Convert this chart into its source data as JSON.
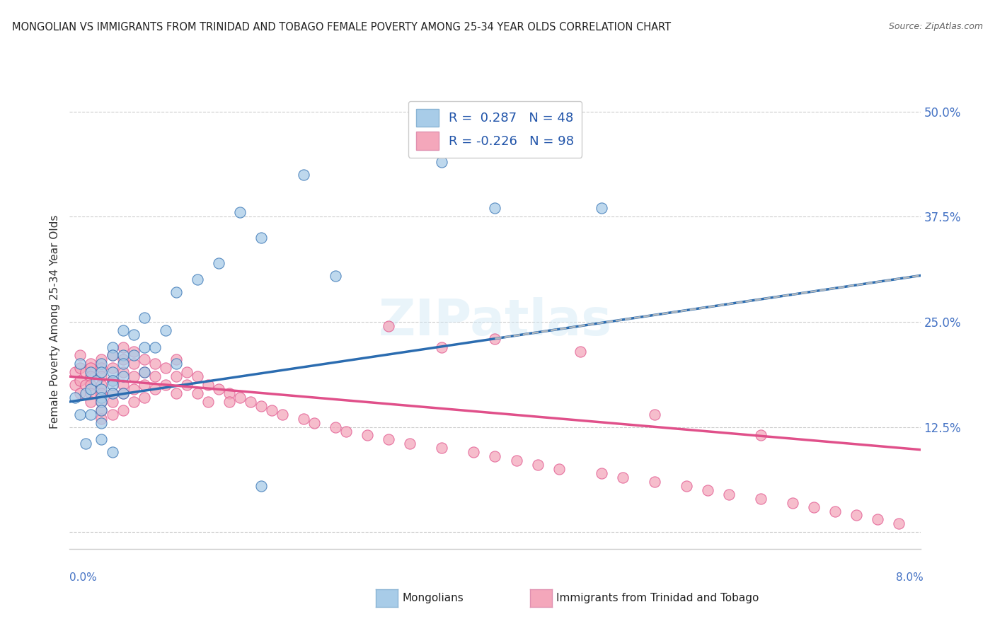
{
  "title": "MONGOLIAN VS IMMIGRANTS FROM TRINIDAD AND TOBAGO FEMALE POVERTY AMONG 25-34 YEAR OLDS CORRELATION CHART",
  "source": "Source: ZipAtlas.com",
  "ylabel": "Female Poverty Among 25-34 Year Olds",
  "yticks": [
    0.0,
    0.125,
    0.25,
    0.375,
    0.5
  ],
  "ytick_labels": [
    "",
    "12.5%",
    "25.0%",
    "37.5%",
    "50.0%"
  ],
  "xlim": [
    0.0,
    0.08
  ],
  "ylim": [
    -0.02,
    0.52
  ],
  "blue_color": "#a8cce8",
  "pink_color": "#f4a7bb",
  "blue_line_color": "#2b6cb0",
  "pink_line_color": "#e0508a",
  "blue_trend_x0": 0.0,
  "blue_trend_y0": 0.155,
  "blue_trend_x1": 0.08,
  "blue_trend_y1": 0.305,
  "pink_trend_x0": 0.0,
  "pink_trend_y0": 0.185,
  "pink_trend_x1": 0.08,
  "pink_trend_y1": 0.098,
  "mongolian_x": [
    0.0005,
    0.001,
    0.001,
    0.0015,
    0.0015,
    0.002,
    0.002,
    0.002,
    0.0025,
    0.003,
    0.003,
    0.003,
    0.003,
    0.003,
    0.003,
    0.003,
    0.003,
    0.004,
    0.004,
    0.004,
    0.004,
    0.004,
    0.004,
    0.004,
    0.005,
    0.005,
    0.005,
    0.005,
    0.005,
    0.006,
    0.006,
    0.007,
    0.007,
    0.007,
    0.008,
    0.009,
    0.01,
    0.01,
    0.012,
    0.014,
    0.016,
    0.018,
    0.022,
    0.025,
    0.035,
    0.05,
    0.018,
    0.04
  ],
  "mongolian_y": [
    0.16,
    0.2,
    0.14,
    0.165,
    0.105,
    0.19,
    0.17,
    0.14,
    0.18,
    0.2,
    0.19,
    0.17,
    0.16,
    0.155,
    0.145,
    0.13,
    0.11,
    0.22,
    0.21,
    0.19,
    0.18,
    0.175,
    0.165,
    0.095,
    0.24,
    0.21,
    0.2,
    0.185,
    0.165,
    0.235,
    0.21,
    0.255,
    0.22,
    0.19,
    0.22,
    0.24,
    0.285,
    0.2,
    0.3,
    0.32,
    0.38,
    0.35,
    0.425,
    0.305,
    0.44,
    0.385,
    0.055,
    0.385
  ],
  "trinidad_x": [
    0.0005,
    0.0005,
    0.001,
    0.001,
    0.001,
    0.001,
    0.0015,
    0.0015,
    0.002,
    0.002,
    0.002,
    0.002,
    0.002,
    0.002,
    0.003,
    0.003,
    0.003,
    0.003,
    0.003,
    0.003,
    0.003,
    0.003,
    0.004,
    0.004,
    0.004,
    0.004,
    0.004,
    0.004,
    0.005,
    0.005,
    0.005,
    0.005,
    0.005,
    0.005,
    0.006,
    0.006,
    0.006,
    0.006,
    0.006,
    0.007,
    0.007,
    0.007,
    0.007,
    0.008,
    0.008,
    0.008,
    0.009,
    0.009,
    0.01,
    0.01,
    0.01,
    0.011,
    0.011,
    0.012,
    0.012,
    0.013,
    0.013,
    0.014,
    0.015,
    0.015,
    0.016,
    0.017,
    0.018,
    0.019,
    0.02,
    0.022,
    0.023,
    0.025,
    0.026,
    0.028,
    0.03,
    0.032,
    0.035,
    0.038,
    0.04,
    0.042,
    0.044,
    0.046,
    0.05,
    0.052,
    0.055,
    0.058,
    0.06,
    0.062,
    0.065,
    0.068,
    0.07,
    0.072,
    0.074,
    0.076,
    0.078,
    0.03,
    0.035,
    0.04,
    0.048,
    0.055,
    0.065
  ],
  "trinidad_y": [
    0.19,
    0.175,
    0.21,
    0.195,
    0.18,
    0.165,
    0.19,
    0.175,
    0.2,
    0.195,
    0.185,
    0.175,
    0.165,
    0.155,
    0.205,
    0.195,
    0.185,
    0.175,
    0.165,
    0.155,
    0.145,
    0.135,
    0.21,
    0.195,
    0.18,
    0.165,
    0.155,
    0.14,
    0.22,
    0.205,
    0.19,
    0.175,
    0.165,
    0.145,
    0.215,
    0.2,
    0.185,
    0.17,
    0.155,
    0.205,
    0.19,
    0.175,
    0.16,
    0.2,
    0.185,
    0.17,
    0.195,
    0.175,
    0.205,
    0.185,
    0.165,
    0.19,
    0.175,
    0.185,
    0.165,
    0.175,
    0.155,
    0.17,
    0.165,
    0.155,
    0.16,
    0.155,
    0.15,
    0.145,
    0.14,
    0.135,
    0.13,
    0.125,
    0.12,
    0.115,
    0.11,
    0.105,
    0.1,
    0.095,
    0.09,
    0.085,
    0.08,
    0.075,
    0.07,
    0.065,
    0.06,
    0.055,
    0.05,
    0.045,
    0.04,
    0.035,
    0.03,
    0.025,
    0.02,
    0.015,
    0.01,
    0.245,
    0.22,
    0.23,
    0.215,
    0.14,
    0.115
  ]
}
